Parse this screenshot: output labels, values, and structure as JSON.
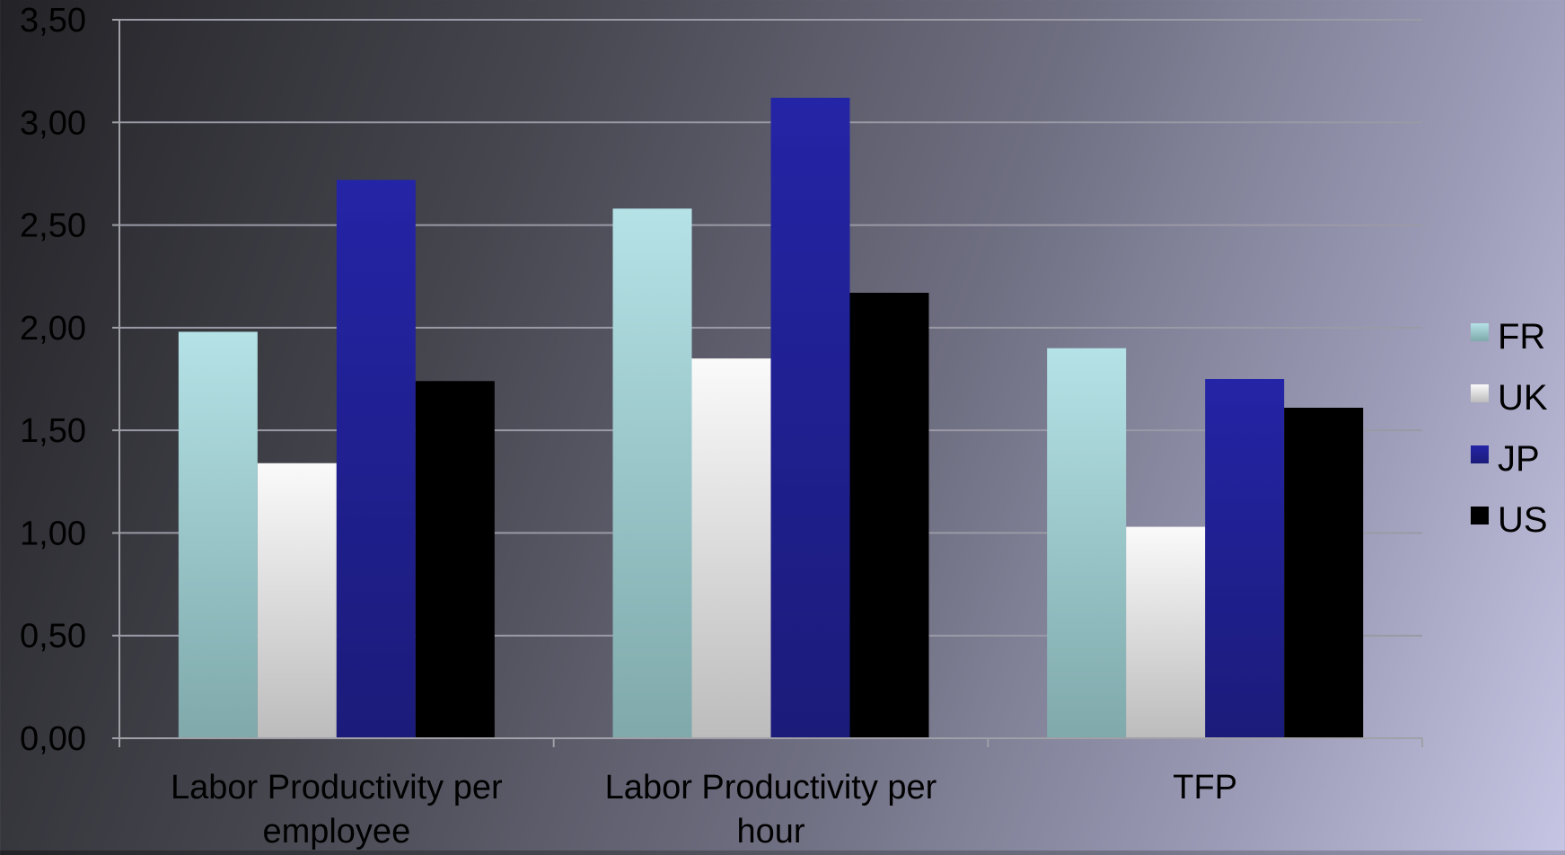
{
  "chart_data": {
    "type": "bar",
    "title": "",
    "xlabel": "",
    "ylabel": "",
    "categories": [
      [
        "Labor Productivity per",
        "employee"
      ],
      [
        "Labor Productivity per",
        "hour"
      ],
      [
        "TFP"
      ]
    ],
    "series": [
      {
        "name": "FR",
        "values": [
          1.98,
          2.58,
          1.9
        ],
        "color_top": "#b4e2e6",
        "color_bottom": "#7fa9ab"
      },
      {
        "name": "UK",
        "values": [
          1.34,
          1.85,
          1.03
        ],
        "color_top": "#fafafa",
        "color_bottom": "#bcbcbc"
      },
      {
        "name": "JP",
        "values": [
          2.72,
          3.12,
          1.75
        ],
        "color_top": "#2424a6",
        "color_bottom": "#1b1b7a"
      },
      {
        "name": "US",
        "values": [
          1.74,
          2.17,
          1.61
        ],
        "color_top": "#000000",
        "color_bottom": "#000000"
      }
    ],
    "yticks": [
      "0,00",
      "0,50",
      "1,00",
      "1,50",
      "2,00",
      "2,50",
      "3,00",
      "3,50"
    ],
    "ylim": [
      0,
      3.5
    ],
    "grid": true,
    "legend_position": "right",
    "colors": {
      "grid": "#9a9aa6",
      "axis": "#a0a0a8",
      "text": "#000000"
    }
  }
}
